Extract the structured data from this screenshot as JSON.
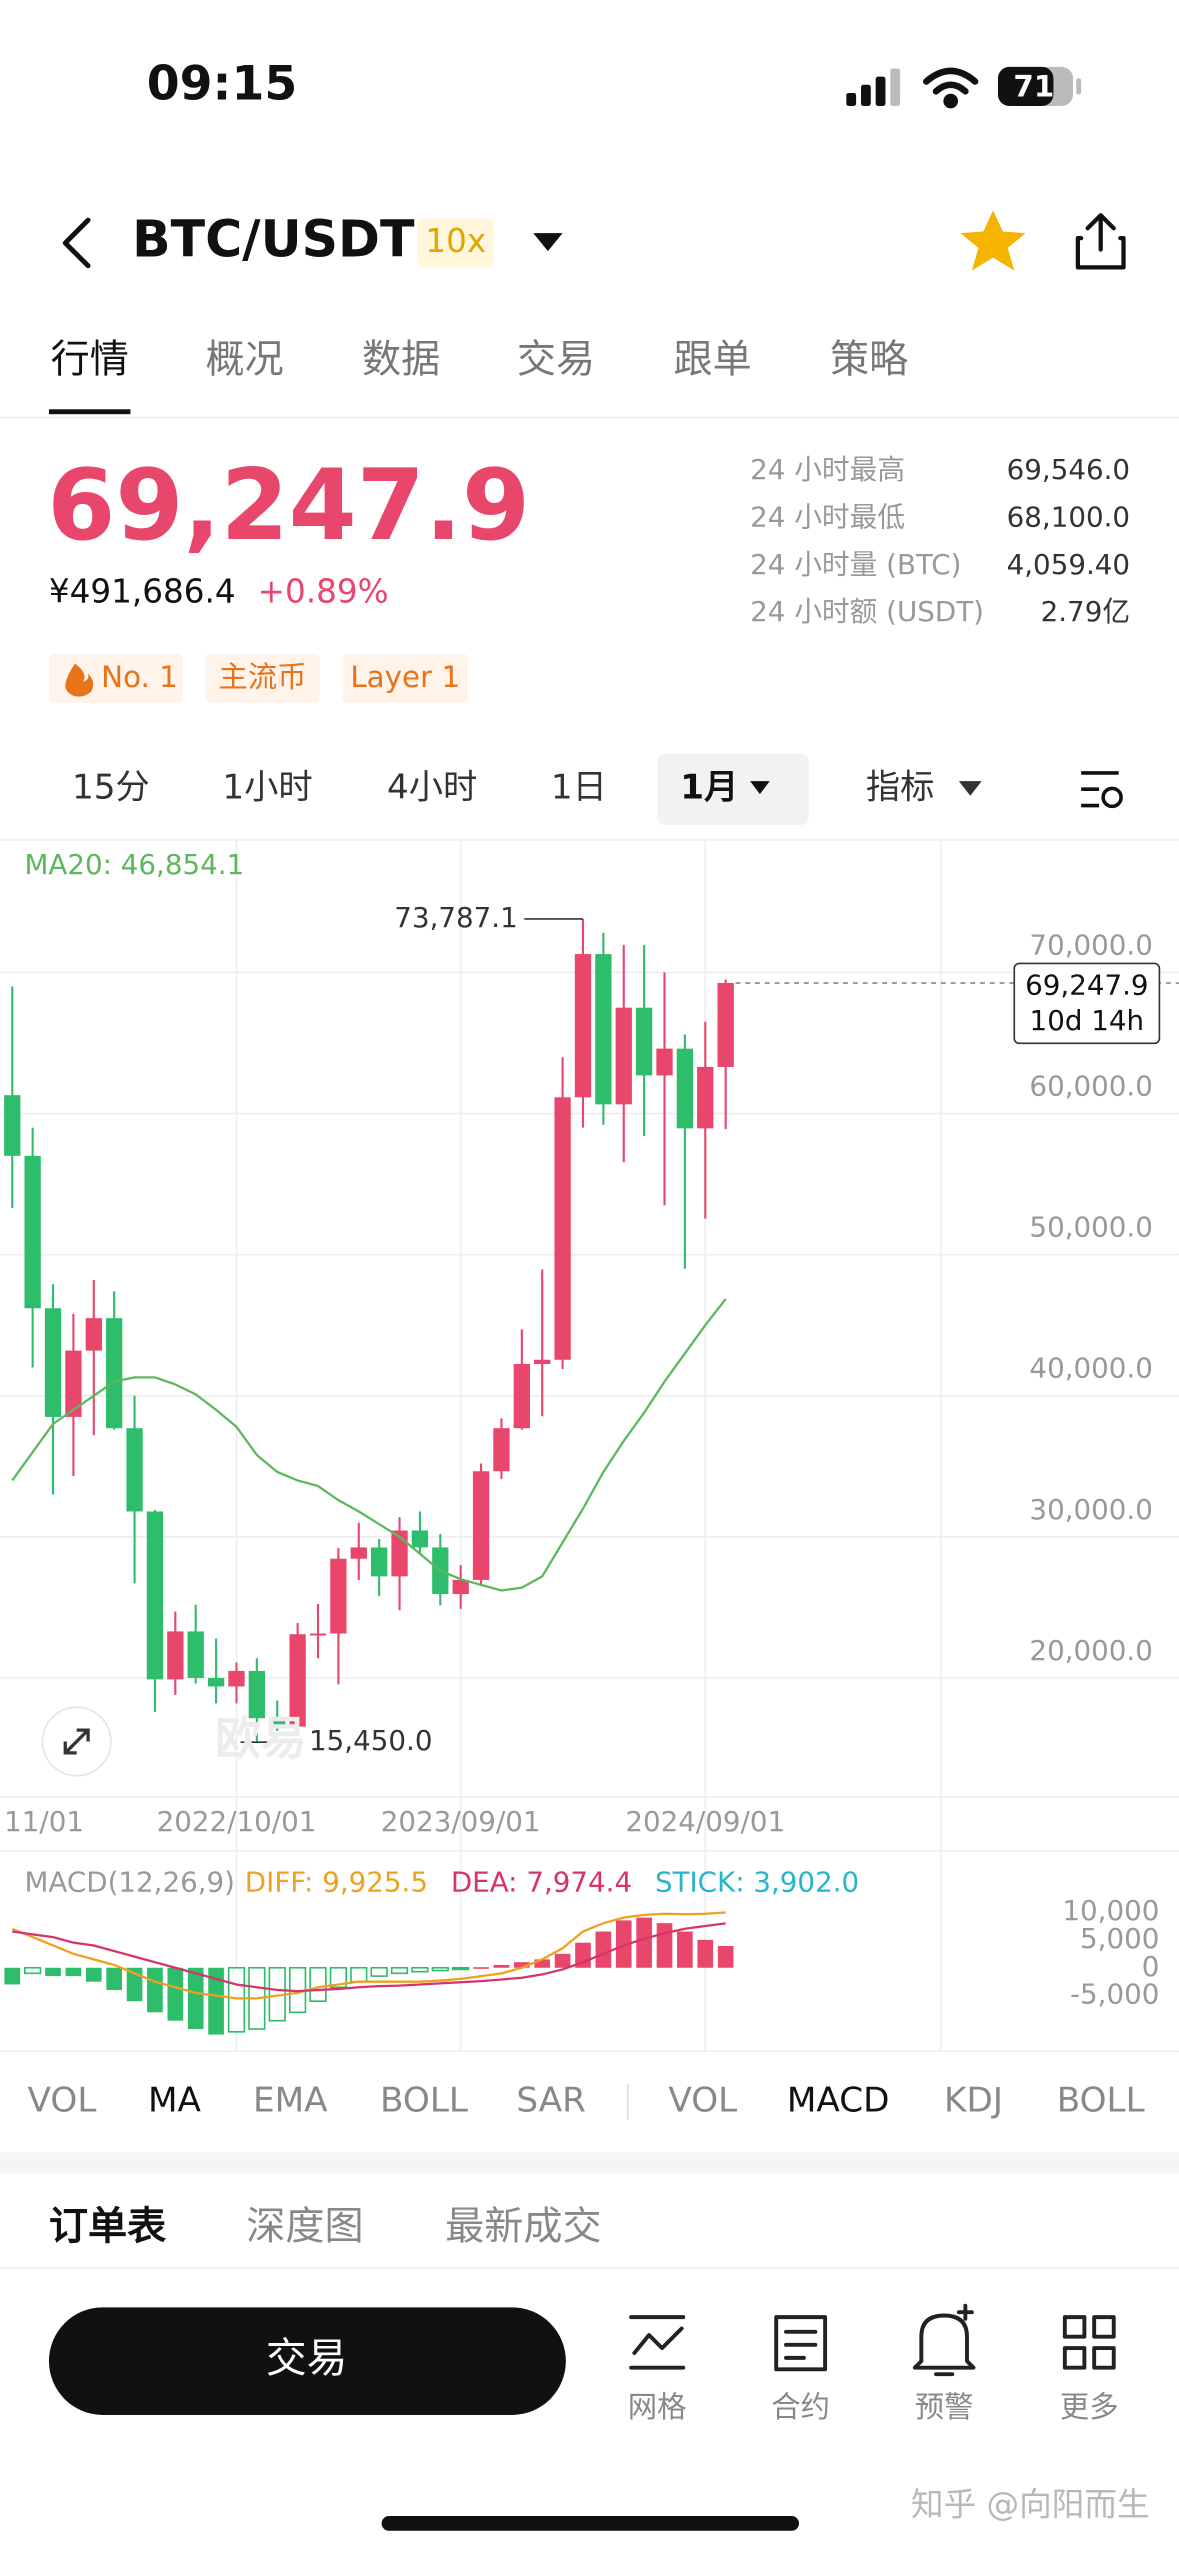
{
  "status_bar": {
    "time": "09:15",
    "battery": "71"
  },
  "header": {
    "symbol": "BTC/USDT",
    "leverage": "10x"
  },
  "tabs": [
    "行情",
    "概况",
    "数据",
    "交易",
    "跟单",
    "策略"
  ],
  "price": {
    "last": "69,247.9",
    "cny": "¥491,686.4",
    "change": "+0.89%"
  },
  "stats": [
    {
      "label": "24 小时最高",
      "value": "69,546.0"
    },
    {
      "label": "24 小时最低",
      "value": "68,100.0"
    },
    {
      "label": "24 小时量 (BTC)",
      "value": "4,059.40"
    },
    {
      "label": "24 小时额 (USDT)",
      "value": "2.79亿"
    }
  ],
  "tags": [
    "No. 1",
    "主流币",
    "Layer 1"
  ],
  "intervals": [
    "15分",
    "1小时",
    "4小时",
    "1日",
    "1月",
    "指标"
  ],
  "watermark_chart": "欧易",
  "chart_data": [
    {
      "type": "candlestick",
      "categories": [
        "11/01",
        null,
        null,
        null,
        null,
        null,
        null,
        null,
        null,
        null,
        null,
        "2022/10/01",
        null,
        null,
        null,
        null,
        null,
        null,
        null,
        null,
        null,
        null,
        "2023/09/01",
        null,
        null,
        null,
        null,
        null,
        null,
        null,
        null,
        null,
        null,
        null,
        "2024/09/01",
        null
      ],
      "open": [
        61300,
        57000,
        46200,
        38500,
        43200,
        45500,
        37700,
        31800,
        19900,
        23300,
        20000,
        19400,
        20500,
        17150,
        16550,
        23100,
        23150,
        28450,
        29250,
        27200,
        30450,
        29250,
        25950,
        26950,
        34650,
        37700,
        42250,
        42550,
        61150,
        71300,
        60650,
        67500,
        62700,
        64600,
        58950,
        63300
      ],
      "high": [
        69000,
        59000,
        47900,
        45800,
        48200,
        47400,
        40000,
        31900,
        24700,
        25200,
        22800,
        21100,
        21400,
        18400,
        23900,
        25250,
        29200,
        31000,
        29850,
        31400,
        31800,
        30200,
        28000,
        35200,
        38400,
        44700,
        48950,
        64000,
        73787.1,
        72800,
        71950,
        71950,
        70000,
        65600,
        66500,
        69500
      ],
      "low": [
        53300,
        42000,
        33000,
        34300,
        37200,
        37600,
        26700,
        17600,
        18800,
        19600,
        18200,
        18200,
        15450,
        16250,
        16500,
        21400,
        19550,
        26950,
        25800,
        24800,
        28850,
        25150,
        24900,
        26550,
        34100,
        37600,
        38550,
        41900,
        59000,
        59200,
        56550,
        58400,
        53500,
        49000,
        52550,
        58900
      ],
      "close": [
        57000,
        46200,
        38500,
        43200,
        45500,
        37700,
        31800,
        19900,
        23300,
        20000,
        19400,
        20500,
        17150,
        16550,
        23100,
        23150,
        28450,
        29250,
        27200,
        30450,
        29250,
        25950,
        26950,
        34650,
        37700,
        42250,
        42550,
        61150,
        71300,
        60650,
        67500,
        62700,
        64600,
        58950,
        63300,
        69247.9
      ],
      "up_color": "#e8466b",
      "down_color": "#2ebd6b",
      "series": [
        {
          "name": "MA20: 46,854.1",
          "color": "#5cb85c",
          "values": [
            34000,
            36000,
            38000,
            39000,
            40000,
            41000,
            41300,
            41300,
            40800,
            40100,
            39000,
            37800,
            35800,
            34600,
            34000,
            33600,
            32600,
            31800,
            30900,
            30000,
            28800,
            27600,
            27000,
            26600,
            26200,
            26400,
            27200,
            29600,
            32000,
            34600,
            36800,
            38800,
            41000,
            43000,
            45000,
            46854.1
          ]
        }
      ],
      "max_label": "73,787.1",
      "min_label": "15,450.0",
      "last_label": {
        "price": "69,247.9",
        "countdown": "10d 14h"
      },
      "ylim": [
        11800,
        79400
      ],
      "yticks": [
        {
          "value": 20000,
          "label": "20,000.0"
        },
        {
          "value": 30000,
          "label": "30,000.0"
        },
        {
          "value": 40000,
          "label": "40,000.0"
        },
        {
          "value": 50000,
          "label": "50,000.0"
        },
        {
          "value": 60000,
          "label": "60,000.0"
        },
        {
          "value": 70000,
          "label": "70,000.0"
        }
      ],
      "grid": true
    },
    {
      "type": "macd",
      "title": "MACD(12,26,9)",
      "up_color": "#e8466b",
      "down_color": "#2ebd6b",
      "series": [
        {
          "name": "DIFF: 9,925.5",
          "color": "#f0a020",
          "values": [
            7000,
            5500,
            4000,
            2500,
            1500,
            500,
            -1000,
            -2500,
            -3500,
            -4500,
            -5000,
            -5500,
            -5500,
            -5000,
            -4500,
            -3500,
            -3000,
            -2500,
            -2500,
            -2500,
            -2500,
            -2300,
            -2000,
            -1500,
            -1000,
            0,
            1500,
            3500,
            6500,
            8000,
            9000,
            9500,
            9700,
            9600,
            9700,
            9925.5
          ]
        },
        {
          "name": "DEA: 7,974.4",
          "color": "#d6336c",
          "values": [
            6500,
            6000,
            5500,
            4500,
            4000,
            3000,
            2000,
            1000,
            0,
            -1000,
            -2000,
            -3000,
            -3500,
            -4000,
            -4200,
            -4000,
            -3800,
            -3500,
            -3300,
            -3200,
            -3000,
            -2800,
            -2600,
            -2400,
            -2100,
            -1800,
            -1200,
            -300,
            1000,
            2500,
            4000,
            5200,
            6200,
            7000,
            7500,
            7974.4
          ]
        },
        {
          "name": "STICK: 3,902.0",
          "color": "#27b6c8",
          "type": "bar",
          "values": [
            -3000,
            -1000,
            -1500,
            -1500,
            -2500,
            -4000,
            -6000,
            -8000,
            -9500,
            -11000,
            -12000,
            -11500,
            -11000,
            -9500,
            -8000,
            -6000,
            -3500,
            -2500,
            -1500,
            -1000,
            -700,
            -500,
            -200,
            100,
            500,
            1000,
            1500,
            2500,
            4500,
            6500,
            8500,
            9000,
            8000,
            6500,
            5000,
            3902
          ]
        }
      ],
      "ylim": [
        -15000,
        21000
      ],
      "yticks": [
        {
          "value": -5000,
          "label": "-5,000"
        },
        0,
        {
          "value": 5000,
          "label": "5,000"
        },
        {
          "value": 10000,
          "label": "10,000"
        }
      ]
    }
  ],
  "indicators": {
    "main": [
      "VOL",
      "MA",
      "EMA",
      "BOLL",
      "SAR"
    ],
    "sub": [
      "VOL",
      "MACD",
      "KDJ",
      "BOLL"
    ]
  },
  "order_tabs": [
    "订单表",
    "深度图",
    "最新成交"
  ],
  "bottom_bar": {
    "trade": "交易",
    "items": [
      "网格",
      "合约",
      "预警",
      "更多"
    ]
  },
  "watermark": "知乎 @向阳而生"
}
